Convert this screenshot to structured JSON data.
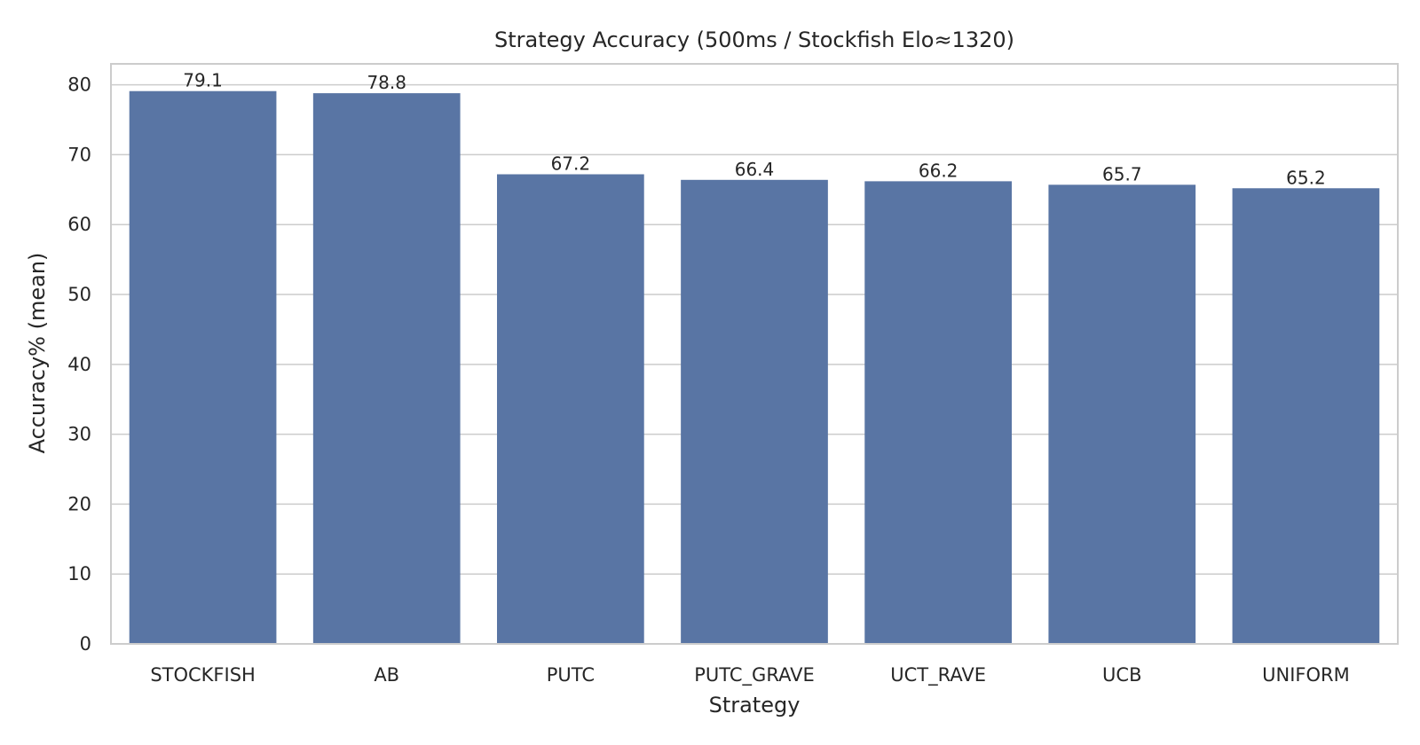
{
  "chart_data": {
    "type": "bar",
    "title": "Strategy Accuracy (500ms / Stockfish Elo≈1320)",
    "xlabel": "Strategy",
    "ylabel": "Accuracy% (mean)",
    "categories": [
      "STOCKFISH",
      "AB",
      "PUTC",
      "PUTC_GRAVE",
      "UCT_RAVE",
      "UCB",
      "UNIFORM"
    ],
    "values": [
      79.1,
      78.8,
      67.2,
      66.4,
      66.2,
      65.7,
      65.2
    ],
    "data_labels": [
      "79.1",
      "78.8",
      "67.2",
      "66.4",
      "66.2",
      "65.7",
      "65.2"
    ],
    "y_ticks": [
      0,
      10,
      20,
      30,
      40,
      50,
      60,
      70,
      80
    ],
    "ylim": [
      0,
      83
    ],
    "grid": "horizontal",
    "colors": {
      "bar": "#5975a4",
      "grid": "#cccccc",
      "frame": "#cccccc",
      "text": "#262626"
    }
  }
}
